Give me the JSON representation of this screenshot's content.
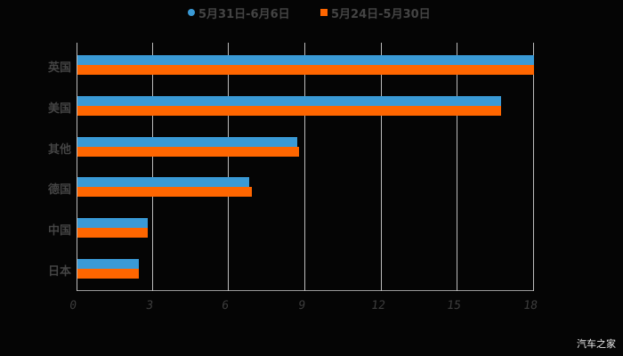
{
  "colors": {
    "series1": "#3a9ad6",
    "series2": "#ff6600",
    "background": "#050505",
    "grid": "#bdbdbd",
    "text": "#444444"
  },
  "legend": [
    {
      "label": "5月31日-6月6日",
      "marker": "circle"
    },
    {
      "label": "5月24日-5月30日",
      "marker": "square"
    }
  ],
  "watermark": "汽车之家",
  "chart_data": {
    "type": "bar",
    "orientation": "horizontal",
    "title": "",
    "categories": [
      "英国",
      "美国",
      "其他",
      "德国",
      "中国",
      "日本"
    ],
    "series": [
      {
        "name": "5月31日-6月6日",
        "color": "#3a9ad6",
        "values": [
          18,
          16.7,
          8.7,
          6.8,
          2.8,
          2.45
        ]
      },
      {
        "name": "5月24日-5月30日",
        "color": "#ff6600",
        "values": [
          18,
          16.7,
          8.75,
          6.9,
          2.8,
          2.45
        ]
      }
    ],
    "xlabel": "",
    "ylabel": "",
    "xlim": [
      0,
      18
    ],
    "xticks": [
      "0",
      "3",
      "6",
      "9",
      "12",
      "15",
      "18"
    ],
    "grid": true,
    "legend_position": "top"
  }
}
